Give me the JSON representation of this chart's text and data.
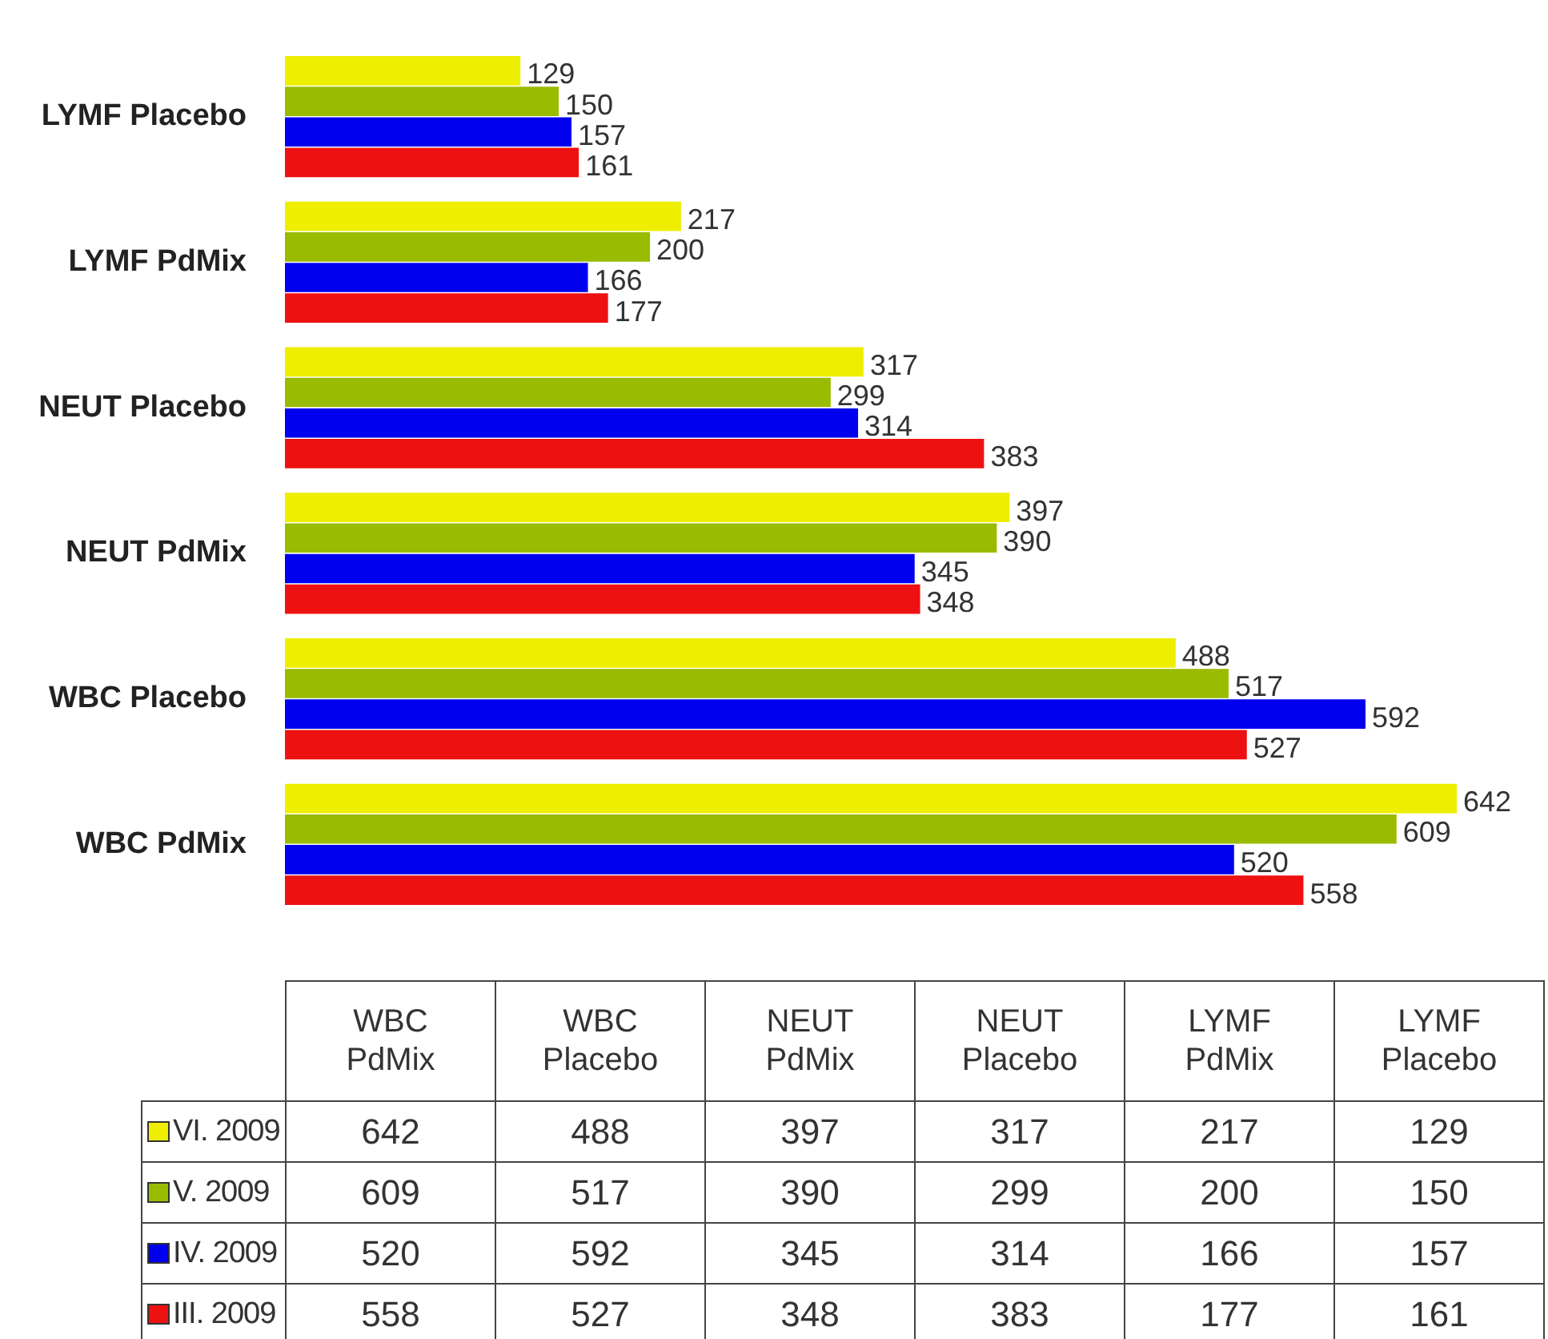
{
  "chart_data": [
    {
      "type": "bar",
      "orientation": "horizontal",
      "categories": [
        "LYMF Placebo",
        "LYMF PdMix",
        "NEUT Placebo",
        "NEUT PdMix",
        "WBC Placebo",
        "WBC PdMix"
      ],
      "series": [
        {
          "name": "VI. 2009",
          "color": "#eeee00",
          "values": [
            129,
            217,
            317,
            397,
            488,
            642
          ]
        },
        {
          "name": "V. 2009",
          "color": "#99bb00",
          "values": [
            150,
            200,
            299,
            390,
            517,
            609
          ]
        },
        {
          "name": "IV. 2009",
          "color": "#0000ee",
          "values": [
            157,
            166,
            314,
            345,
            592,
            520
          ]
        },
        {
          "name": "III. 2009",
          "color": "#ee1111",
          "values": [
            161,
            177,
            383,
            348,
            527,
            558
          ]
        }
      ],
      "data_labels": true,
      "legend": "bottom",
      "tick_labels": "y"
    },
    {
      "type": "heatmap",
      "categories": [
        "WBC PdMix",
        "WBC Placebo",
        "NEUT PdMix",
        "NEUT Placebo",
        "LYMF PdMix",
        "LYMF Placebo"
      ],
      "y_categories": [
        null,
        null,
        null,
        null
      ],
      "cells": [
        [
          642,
          488,
          397,
          317,
          217,
          129
        ],
        [
          609,
          517,
          390,
          299,
          200,
          150
        ],
        [
          520,
          592,
          345,
          314,
          166,
          157
        ],
        [
          558,
          527,
          348,
          383,
          177,
          161
        ]
      ],
      "data_labels": true
    }
  ]
}
